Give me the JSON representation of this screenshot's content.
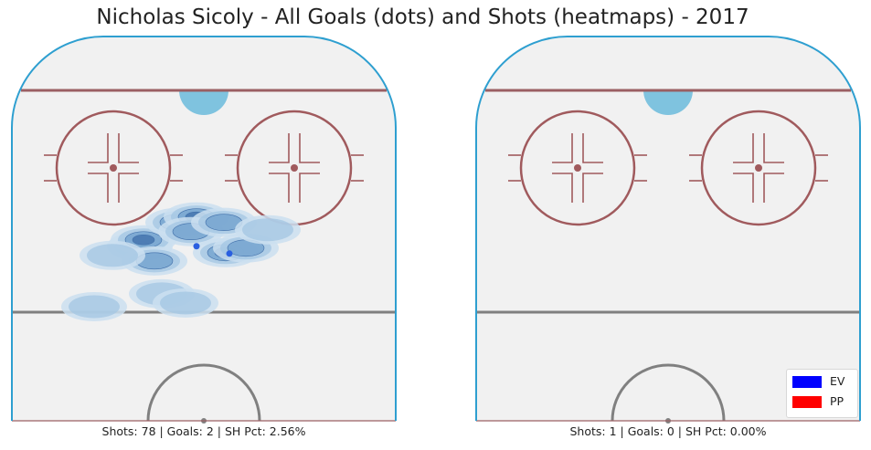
{
  "title": "Nicholas Sicoly - All Goals (dots) and Shots (heatmaps) - 2017",
  "legend": [
    {
      "label": "EV",
      "color": "#0000ff"
    },
    {
      "label": "PP",
      "color": "#ff0000"
    }
  ],
  "chart_data": [
    {
      "type": "heatmap",
      "caption": "Shots: 78 | Goals: 2 | SH Pct: 2.56%",
      "shots": 78,
      "goals": 2,
      "sh_pct": "2.56%",
      "goal_points": [
        {
          "x": -8,
          "y": 72,
          "strength": "EV"
        },
        {
          "x": 28,
          "y": 64,
          "strength": "EV"
        }
      ],
      "shot_density_hotspots": [
        {
          "x": -70,
          "y": 72,
          "level": 3
        },
        {
          "x": -66,
          "y": 79,
          "level": 3
        },
        {
          "x": -54,
          "y": 56,
          "level": 2
        },
        {
          "x": -28,
          "y": 98,
          "level": 2
        },
        {
          "x": -8,
          "y": 104,
          "level": 3
        },
        {
          "x": -14,
          "y": 88,
          "level": 2
        },
        {
          "x": 24,
          "y": 65,
          "level": 3
        },
        {
          "x": 22,
          "y": 98,
          "level": 2
        },
        {
          "x": 46,
          "y": 70,
          "level": 2
        },
        {
          "x": -100,
          "y": 62,
          "level": 1
        },
        {
          "x": 70,
          "y": 90,
          "level": 1
        },
        {
          "x": -46,
          "y": 20,
          "level": 1
        },
        {
          "x": -20,
          "y": 10,
          "level": 1
        },
        {
          "x": -120,
          "y": 6,
          "level": 1
        }
      ]
    },
    {
      "type": "heatmap",
      "caption": "Shots: 1 | Goals: 0 | SH Pct: 0.00%",
      "shots": 1,
      "goals": 0,
      "sh_pct": "0.00%",
      "goal_points": [],
      "shot_density_hotspots": []
    }
  ],
  "colors": {
    "board": "#2e9fd0",
    "goal_line": "#9b5f63",
    "faceoff": "#a05a5d",
    "blue_line": "#808080",
    "crease": "#7fc3df",
    "ice": "#f1f1f1",
    "heat_levels": [
      "#cbdff0",
      "#a3c6e3",
      "#6f9fcc",
      "#3f6ea9"
    ],
    "ev_goal": "#2a5fe0"
  }
}
